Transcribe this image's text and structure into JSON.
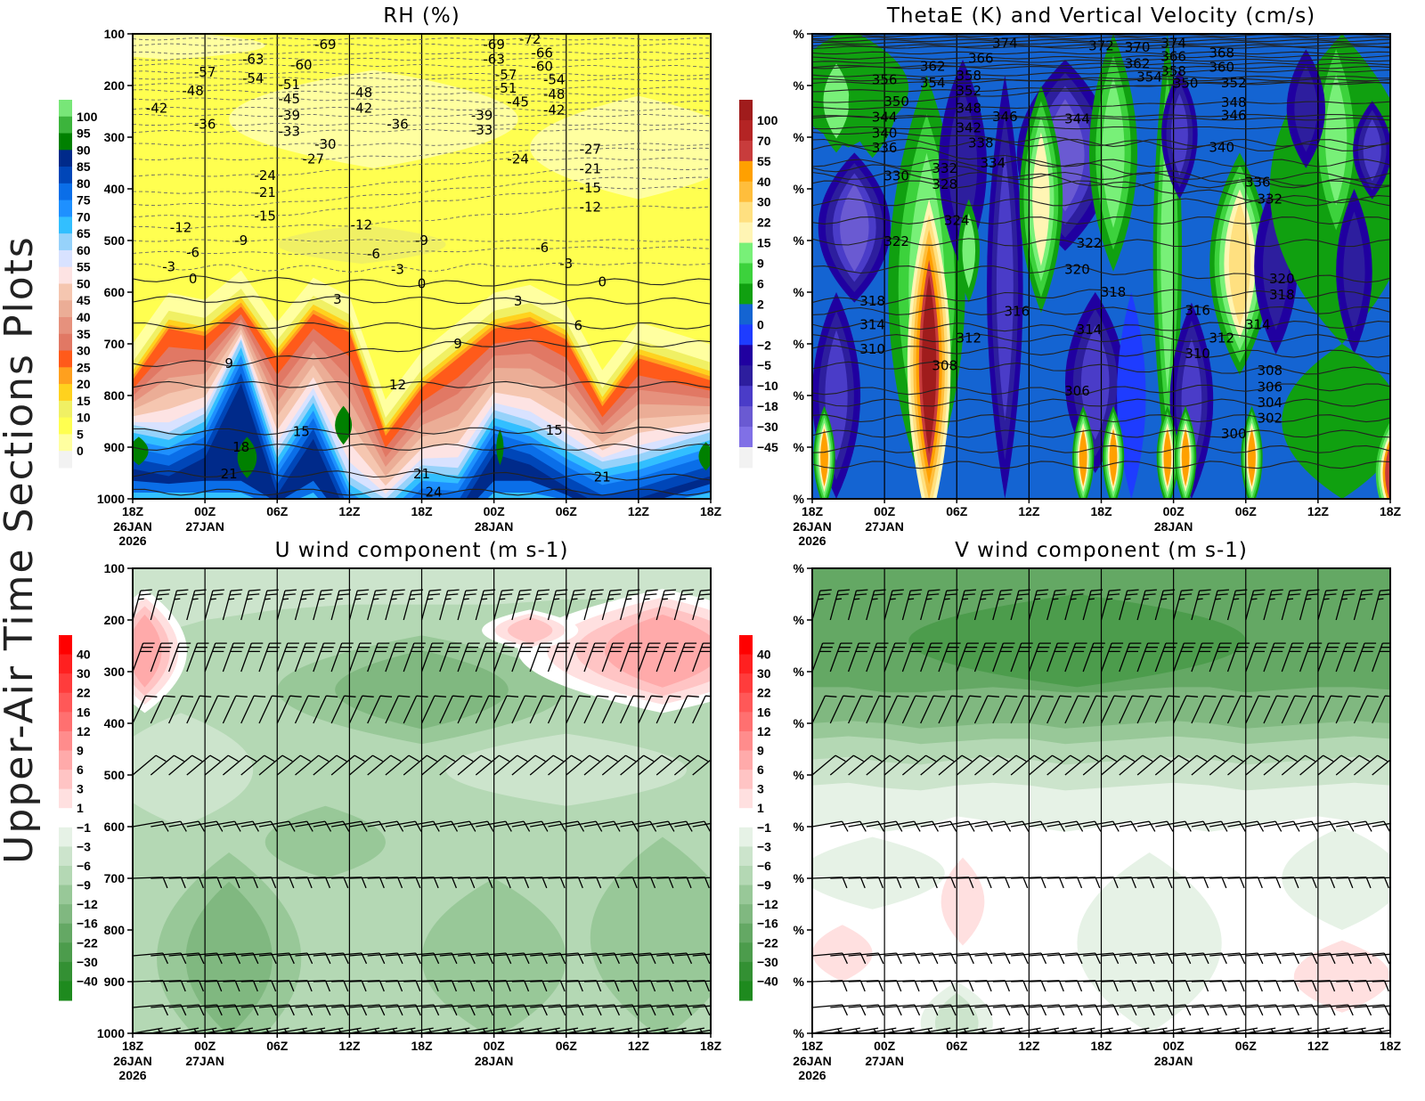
{
  "page_title": "Upper-Air Time Sections Plots",
  "time_axis": {
    "start": "26JAN 18Z",
    "hours": 48,
    "tick_labels": [
      "18Z",
      "00Z",
      "06Z",
      "12Z",
      "18Z",
      "00Z",
      "06Z",
      "12Z",
      "18Z"
    ],
    "date_labels": [
      {
        "tick": 0,
        "lines": [
          "26JAN",
          "2026"
        ]
      },
      {
        "tick": 1,
        "lines": [
          "27JAN"
        ]
      },
      {
        "tick": 5,
        "lines": [
          "28JAN"
        ]
      }
    ]
  },
  "chart_data": [
    {
      "id": "rh",
      "type": "heatmap",
      "title": "RH (%)",
      "ylim": [
        1000,
        100
      ],
      "ytick_labels": [
        "100",
        "200",
        "300",
        "400",
        "500",
        "600",
        "700",
        "800",
        "900",
        "1000"
      ],
      "colorbar": {
        "labels": [
          "100",
          "95",
          "90",
          "85",
          "80",
          "75",
          "70",
          "65",
          "60",
          "55",
          "50",
          "45",
          "40",
          "35",
          "30",
          "25",
          "20",
          "15",
          "10",
          "5",
          "0"
        ],
        "colors": [
          "#78e678",
          "#3cb43c",
          "#008000",
          "#002a8a",
          "#0046b8",
          "#0a6ee8",
          "#1e90ff",
          "#32bfff",
          "#96d2fa",
          "#d8e2ff",
          "#fde3e3",
          "#f5c6b0",
          "#ebad96",
          "#e6917d",
          "#e17864",
          "#ff5a1a",
          "#ffa01e",
          "#ffd21e",
          "#f0f064",
          "#ffff50",
          "#ffffa0",
          "#f2f2f2"
        ]
      },
      "contour_labels": [
        [
          -69,
          "27JAN 10Z",
          121
        ],
        [
          -63,
          "27JAN 04Z",
          149
        ],
        [
          -60,
          "27JAN 08Z",
          160
        ],
        [
          -57,
          "27JAN 00Z",
          174
        ],
        [
          -54,
          "27JAN 04Z",
          186
        ],
        [
          -48,
          "26JAN 23Z",
          210
        ],
        [
          -51,
          "27JAN 07Z",
          198
        ],
        [
          -45,
          "27JAN 07Z",
          226
        ],
        [
          -39,
          "27JAN 07Z",
          258
        ],
        [
          -33,
          "27JAN 07Z",
          289
        ],
        [
          -42,
          "26JAN 20Z",
          244
        ],
        [
          -36,
          "27JAN 00Z",
          275
        ],
        [
          -30,
          "27JAN 10Z",
          314
        ],
        [
          -27,
          "27JAN 09Z",
          342
        ],
        [
          -24,
          "27JAN 05Z",
          374
        ],
        [
          -21,
          "27JAN 05Z",
          407
        ],
        [
          -15,
          "27JAN 05Z",
          453
        ],
        [
          -12,
          "26JAN 22Z",
          475
        ],
        [
          -9,
          "27JAN 03Z",
          500
        ],
        [
          -6,
          "26JAN 23Z",
          523
        ],
        [
          -3,
          "26JAN 21Z",
          551
        ],
        [
          0,
          "26JAN 23Z",
          574
        ],
        [
          3,
          "27JAN 11Z",
          614
        ],
        [
          9,
          "27JAN 02Z",
          738
        ],
        [
          12,
          "27JAN 16Z",
          779
        ],
        [
          15,
          "27JAN 08Z",
          870
        ],
        [
          18,
          "27JAN 03Z",
          900
        ],
        [
          21,
          "27JAN 02Z",
          952
        ],
        [
          -48,
          "27JAN 13Z",
          214
        ],
        [
          -42,
          "27JAN 13Z",
          244
        ],
        [
          -36,
          "27JAN 16Z",
          275
        ],
        [
          -12,
          "27JAN 13Z",
          470
        ],
        [
          -6,
          "27JAN 14Z",
          526
        ],
        [
          -3,
          "27JAN 16Z",
          556
        ],
        [
          -9,
          "27JAN 18Z",
          500
        ],
        [
          0,
          "27JAN 18Z",
          584
        ],
        [
          -69,
          "28JAN 00Z",
          121
        ],
        [
          -63,
          "28JAN 00Z",
          149
        ],
        [
          -57,
          "28JAN 01Z",
          179
        ],
        [
          -51,
          "28JAN 01Z",
          205
        ],
        [
          -45,
          "28JAN 02Z",
          232
        ],
        [
          -72,
          "28JAN 03Z",
          110
        ],
        [
          -66,
          "28JAN 04Z",
          137
        ],
        [
          -60,
          "28JAN 04Z",
          163
        ],
        [
          -54,
          "28JAN 05Z",
          189
        ],
        [
          -48,
          "28JAN 05Z",
          217
        ],
        [
          -42,
          "28JAN 05Z",
          247
        ],
        [
          -39,
          "27JAN 23Z",
          258
        ],
        [
          -33,
          "27JAN 23Z",
          286
        ],
        [
          -24,
          "28JAN 02Z",
          342
        ],
        [
          -27,
          "28JAN 08Z",
          323
        ],
        [
          -21,
          "28JAN 08Z",
          361
        ],
        [
          -15,
          "28JAN 08Z",
          398
        ],
        [
          -12,
          "28JAN 08Z",
          435
        ],
        [
          -6,
          "28JAN 04Z",
          514
        ],
        [
          -3,
          "28JAN 06Z",
          545
        ],
        [
          0,
          "28JAN 09Z",
          580
        ],
        [
          3,
          "28JAN 02Z",
          617
        ],
        [
          6,
          "28JAN 07Z",
          665
        ],
        [
          9,
          "27JAN 21Z",
          700
        ],
        [
          15,
          "28JAN 05Z",
          867
        ],
        [
          21,
          "27JAN 18Z",
          952
        ],
        [
          24,
          "27JAN 19Z",
          987
        ],
        [
          21,
          "28JAN 09Z",
          958
        ]
      ]
    },
    {
      "id": "thetae",
      "type": "heatmap",
      "title": "ThetaE (K) and Vertical Velocity (cm/s)",
      "ylim": [
        1000,
        100
      ],
      "ytick_labels": [
        "%",
        "%",
        "%",
        "%",
        "%",
        "%",
        "%",
        "%",
        "%",
        "%"
      ],
      "colorbar": {
        "labels": [
          "100",
          "70",
          "55",
          "40",
          "30",
          "22",
          "15",
          "9",
          "6",
          "2",
          "0",
          "−2",
          "−5",
          "−10",
          "−18",
          "−30",
          "−45"
        ],
        "colors": [
          "#a01c1c",
          "#b42424",
          "#c83c3c",
          "#ffa000",
          "#ffbe3c",
          "#ffe080",
          "#fff5b4",
          "#78f078",
          "#3cd23c",
          "#10a010",
          "#1464d2",
          "#1e3cff",
          "#2000a0",
          "#2d1e9e",
          "#4a3cc8",
          "#6a5ad2",
          "#8070e6",
          "#f2f2f2"
        ]
      },
      "contour_labels": [
        [
          374,
          "27JAN 10Z",
          118
        ],
        [
          372,
          "27JAN 18Z",
          123
        ],
        [
          370,
          "27JAN 21Z",
          126
        ],
        [
          374,
          "28JAN 00Z",
          118
        ],
        [
          366,
          "27JAN 08Z",
          147
        ],
        [
          366,
          "28JAN 00Z",
          144
        ],
        [
          368,
          "28JAN 04Z",
          137
        ],
        [
          362,
          "27JAN 04Z",
          163
        ],
        [
          362,
          "27JAN 21Z",
          158
        ],
        [
          360,
          "28JAN 04Z",
          165
        ],
        [
          356,
          "27JAN 00Z",
          189
        ],
        [
          354,
          "27JAN 04Z",
          195
        ],
        [
          358,
          "27JAN 07Z",
          181
        ],
        [
          358,
          "28JAN 00Z",
          172
        ],
        [
          352,
          "27JAN 07Z",
          210
        ],
        [
          354,
          "27JAN 22Z",
          184
        ],
        [
          350,
          "28JAN 01Z",
          196
        ],
        [
          352,
          "28JAN 05Z",
          195
        ],
        [
          350,
          "27JAN 01Z",
          231
        ],
        [
          348,
          "27JAN 07Z",
          244
        ],
        [
          348,
          "28JAN 05Z",
          233
        ],
        [
          346,
          "27JAN 10Z",
          260
        ],
        [
          346,
          "28JAN 05Z",
          258
        ],
        [
          344,
          "27JAN 00Z",
          261
        ],
        [
          344,
          "27JAN 16Z",
          265
        ],
        [
          342,
          "27JAN 07Z",
          282
        ],
        [
          340,
          "27JAN 00Z",
          292
        ],
        [
          338,
          "27JAN 08Z",
          311
        ],
        [
          340,
          "28JAN 04Z",
          320
        ],
        [
          336,
          "27JAN 00Z",
          321
        ],
        [
          334,
          "27JAN 09Z",
          350
        ],
        [
          332,
          "27JAN 05Z",
          360
        ],
        [
          330,
          "27JAN 01Z",
          375
        ],
        [
          328,
          "27JAN 05Z",
          391
        ],
        [
          336,
          "28JAN 07Z",
          387
        ],
        [
          332,
          "28JAN 08Z",
          420
        ],
        [
          324,
          "27JAN 06Z",
          461
        ],
        [
          322,
          "27JAN 01Z",
          502
        ],
        [
          322,
          "27JAN 17Z",
          505
        ],
        [
          320,
          "27JAN 16Z",
          556
        ],
        [
          320,
          "28JAN 09Z",
          574
        ],
        [
          318,
          "27JAN 19Z",
          600
        ],
        [
          318,
          "28JAN 09Z",
          605
        ],
        [
          318,
          "26JAN 23Z",
          617
        ],
        [
          316,
          "27JAN 11Z",
          637
        ],
        [
          316,
          "28JAN 02Z",
          635
        ],
        [
          314,
          "26JAN 23Z",
          663
        ],
        [
          314,
          "27JAN 17Z",
          672
        ],
        [
          314,
          "28JAN 07Z",
          663
        ],
        [
          312,
          "27JAN 07Z",
          689
        ],
        [
          312,
          "28JAN 04Z",
          689
        ],
        [
          310,
          "26JAN 23Z",
          710
        ],
        [
          310,
          "28JAN 02Z",
          719
        ],
        [
          308,
          "27JAN 05Z",
          742
        ],
        [
          308,
          "28JAN 08Z",
          752
        ],
        [
          306,
          "27JAN 16Z",
          791
        ],
        [
          306,
          "28JAN 08Z",
          784
        ],
        [
          304,
          "28JAN 08Z",
          814
        ],
        [
          302,
          "28JAN 08Z",
          844
        ],
        [
          300,
          "28JAN 05Z",
          874
        ]
      ]
    },
    {
      "id": "u",
      "type": "heatmap",
      "title": "U wind component (m s-1)",
      "ylim": [
        1000,
        100
      ],
      "ytick_labels": [
        "100",
        "200",
        "300",
        "400",
        "500",
        "600",
        "700",
        "800",
        "900",
        "1000"
      ],
      "colorbar": {
        "labels": [
          "40",
          "30",
          "22",
          "16",
          "12",
          "9",
          "6",
          "3",
          "1",
          "−1",
          "−3",
          "−6",
          "−9",
          "−12",
          "−16",
          "−22",
          "−30",
          "−40"
        ],
        "colors": [
          "#ff0000",
          "#ff2020",
          "#ff3c3c",
          "#ff5858",
          "#ff7070",
          "#ff8c8c",
          "#ffaaaa",
          "#ffc4c4",
          "#ffe0e0",
          "#ffffff",
          "#e6f2e6",
          "#cce4cc",
          "#b4d8b4",
          "#98c898",
          "#80b880",
          "#64a864",
          "#4c9c4c",
          "#339033",
          "#1e8a1e"
        ]
      },
      "barbs": [
        {
          "p": 200,
          "dir": 15,
          "kt": 25
        },
        {
          "p": 300,
          "dir": 20,
          "kt": 30
        },
        {
          "p": 400,
          "dir": 25,
          "kt": 10
        },
        {
          "p": 500,
          "dir": 50,
          "kt": 10
        },
        {
          "p": 600,
          "dir": 80,
          "kt": 10
        },
        {
          "p": 700,
          "dir": 88,
          "kt": 10
        },
        {
          "p": 850,
          "dir": 85,
          "kt": 10
        },
        {
          "p": 900,
          "dir": 88,
          "kt": 10
        },
        {
          "p": 950,
          "dir": 85,
          "kt": 10
        },
        {
          "p": 1000,
          "dir": 80,
          "kt": 5
        }
      ]
    },
    {
      "id": "v",
      "type": "heatmap",
      "title": "V wind component (m s-1)",
      "ylim": [
        1000,
        100
      ],
      "ytick_labels": [
        "%",
        "%",
        "%",
        "%",
        "%",
        "%",
        "%",
        "%",
        "%",
        "%"
      ],
      "colorbar": {
        "labels": [
          "40",
          "30",
          "22",
          "16",
          "12",
          "9",
          "6",
          "3",
          "1",
          "−1",
          "−3",
          "−6",
          "−9",
          "−12",
          "−16",
          "−22",
          "−30",
          "−40"
        ],
        "colors": [
          "#ff0000",
          "#ff2020",
          "#ff3c3c",
          "#ff5858",
          "#ff7070",
          "#ff8c8c",
          "#ffaaaa",
          "#ffc4c4",
          "#ffe0e0",
          "#ffffff",
          "#e6f2e6",
          "#cce4cc",
          "#b4d8b4",
          "#98c898",
          "#80b880",
          "#64a864",
          "#4c9c4c",
          "#339033",
          "#1e8a1e"
        ]
      },
      "barbs": [
        {
          "p": 200,
          "dir": 15,
          "kt": 25
        },
        {
          "p": 300,
          "dir": 20,
          "kt": 30
        },
        {
          "p": 400,
          "dir": 25,
          "kt": 10
        },
        {
          "p": 500,
          "dir": 50,
          "kt": 10
        },
        {
          "p": 600,
          "dir": 80,
          "kt": 10
        },
        {
          "p": 700,
          "dir": 88,
          "kt": 10
        },
        {
          "p": 850,
          "dir": 85,
          "kt": 10
        },
        {
          "p": 900,
          "dir": 88,
          "kt": 10
        },
        {
          "p": 950,
          "dir": 85,
          "kt": 10
        },
        {
          "p": 1000,
          "dir": 80,
          "kt": 5
        }
      ]
    }
  ]
}
